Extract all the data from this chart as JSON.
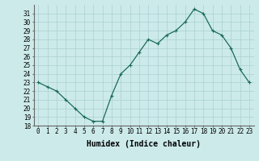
{
  "x": [
    0,
    1,
    2,
    3,
    4,
    5,
    6,
    7,
    8,
    9,
    10,
    11,
    12,
    13,
    14,
    15,
    16,
    17,
    18,
    19,
    20,
    21,
    22,
    23
  ],
  "y": [
    23,
    22.5,
    22,
    21,
    20,
    19,
    18.5,
    18.5,
    21.5,
    24,
    25,
    26.5,
    28,
    27.5,
    28.5,
    29,
    30,
    31.5,
    31,
    29,
    28.5,
    27,
    24.5,
    23
  ],
  "xlabel": "Humidex (Indice chaleur)",
  "ylim": [
    18,
    32
  ],
  "xlim": [
    -0.5,
    23.5
  ],
  "yticks": [
    18,
    19,
    20,
    21,
    22,
    23,
    24,
    25,
    26,
    27,
    28,
    29,
    30,
    31
  ],
  "xticks": [
    0,
    1,
    2,
    3,
    4,
    5,
    6,
    7,
    8,
    9,
    10,
    11,
    12,
    13,
    14,
    15,
    16,
    17,
    18,
    19,
    20,
    21,
    22,
    23
  ],
  "line_color": "#1a6b5a",
  "marker": "+",
  "marker_size": 3,
  "marker_linewidth": 0.8,
  "bg_color": "#cceaea",
  "grid_color": "#aacfcf",
  "tick_fontsize": 5.5,
  "xlabel_fontsize": 7,
  "line_width": 0.9
}
